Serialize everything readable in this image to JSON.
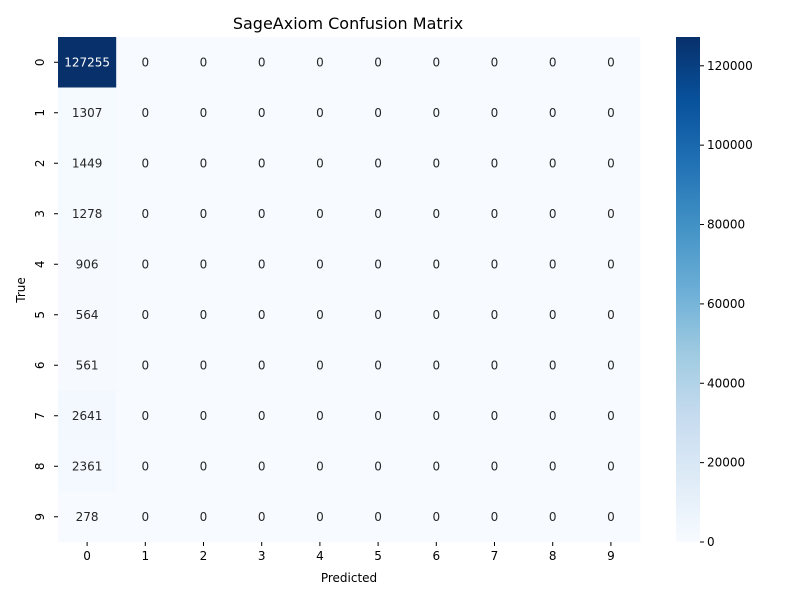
{
  "chart_data": {
    "type": "heatmap",
    "title": "SageAxiom Confusion Matrix",
    "xlabel": "Predicted",
    "ylabel": "True",
    "x_categories": [
      "0",
      "1",
      "2",
      "3",
      "4",
      "5",
      "6",
      "7",
      "8",
      "9"
    ],
    "y_categories": [
      "0",
      "1",
      "2",
      "3",
      "4",
      "5",
      "6",
      "7",
      "8",
      "9"
    ],
    "values": [
      [
        127255,
        0,
        0,
        0,
        0,
        0,
        0,
        0,
        0,
        0
      ],
      [
        1307,
        0,
        0,
        0,
        0,
        0,
        0,
        0,
        0,
        0
      ],
      [
        1449,
        0,
        0,
        0,
        0,
        0,
        0,
        0,
        0,
        0
      ],
      [
        1278,
        0,
        0,
        0,
        0,
        0,
        0,
        0,
        0,
        0
      ],
      [
        906,
        0,
        0,
        0,
        0,
        0,
        0,
        0,
        0,
        0
      ],
      [
        564,
        0,
        0,
        0,
        0,
        0,
        0,
        0,
        0,
        0
      ],
      [
        561,
        0,
        0,
        0,
        0,
        0,
        0,
        0,
        0,
        0
      ],
      [
        2641,
        0,
        0,
        0,
        0,
        0,
        0,
        0,
        0,
        0
      ],
      [
        2361,
        0,
        0,
        0,
        0,
        0,
        0,
        0,
        0,
        0
      ],
      [
        278,
        0,
        0,
        0,
        0,
        0,
        0,
        0,
        0,
        0
      ]
    ],
    "colormap": "Blues",
    "colorbar": {
      "range": [
        0,
        127255
      ],
      "ticks": [
        0,
        20000,
        40000,
        60000,
        80000,
        100000,
        120000
      ]
    }
  }
}
